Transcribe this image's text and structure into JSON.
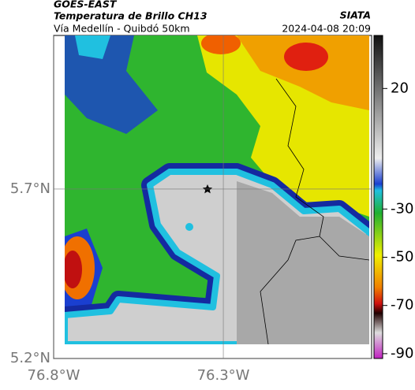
{
  "header": {
    "title": "GOES-EAST",
    "subtitle": "Temperatura de Brillo CH13",
    "region": "Vía Medellín - Quibdó 50km",
    "source": "SIATA",
    "datetime": "2024-04-08 20:09"
  },
  "map": {
    "latlim": [
      5.2,
      6.153
    ],
    "lonlim": [
      -76.8,
      -75.863
    ],
    "lat_ticks": [
      {
        "value": 5.7,
        "label": "5.7°N"
      },
      {
        "value": 5.2,
        "label": "5.2°N"
      }
    ],
    "lon_ticks": [
      {
        "value": -76.8,
        "label": "76.8°W"
      },
      {
        "value": -76.3,
        "label": "76.3°W"
      }
    ]
  },
  "colorbar": {
    "lim": [
      -92,
      42
    ],
    "ticks": [
      20,
      -30,
      -50,
      -70,
      -90
    ]
  }
}
